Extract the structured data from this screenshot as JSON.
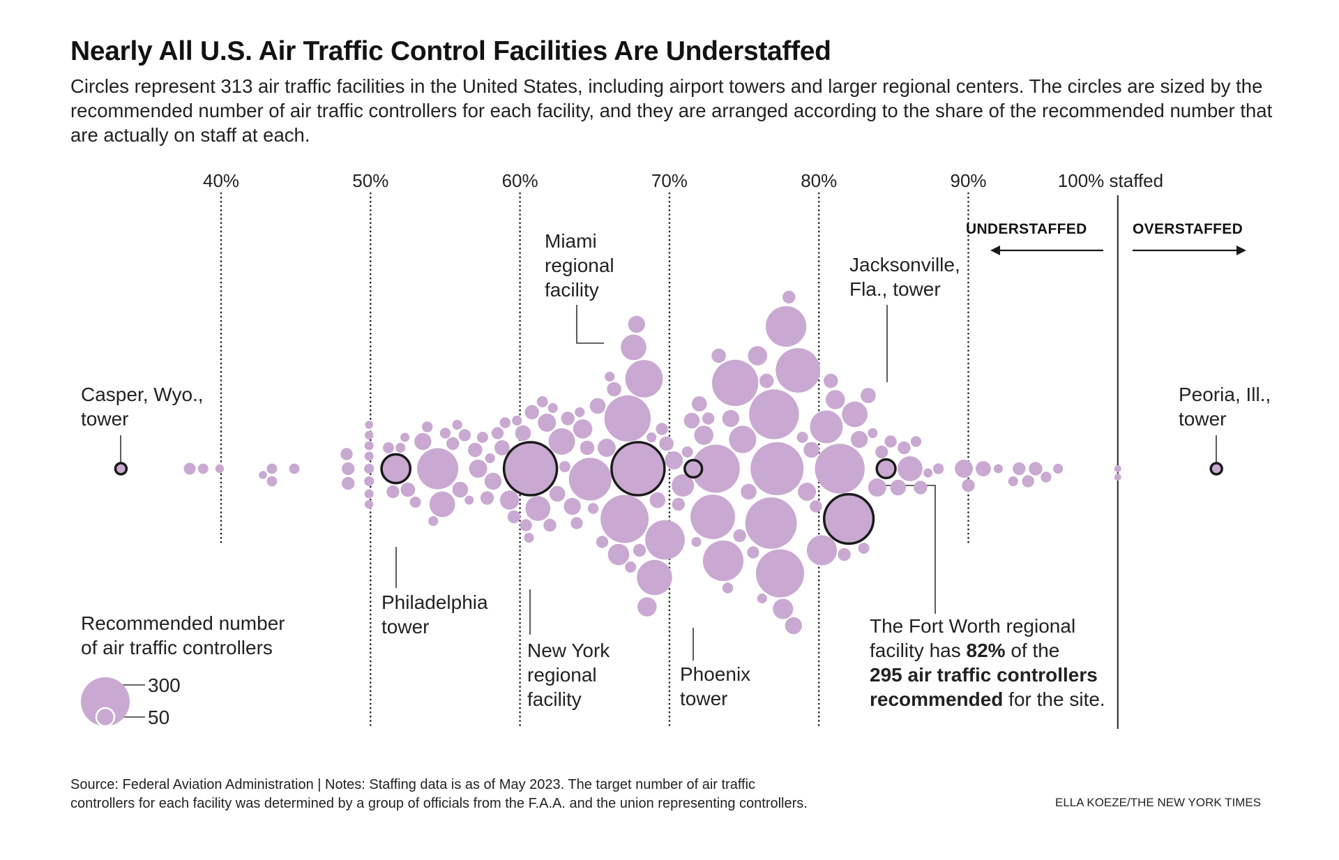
{
  "title": "Nearly All U.S. Air Traffic Control Facilities Are Understaffed",
  "subtitle": "Circles represent 313 air traffic facilities in the United States, including airport towers and larger regional centers. The circles are sized by the recommended number of air traffic controllers for each facility, and they are arranged according to the share of the recommended number that are actually on staff at each.",
  "colors": {
    "circle": "#c9a9d1",
    "highlight_stroke": "#1a1a1a",
    "grid": "#222222"
  },
  "chart_data": {
    "type": "scatter",
    "subtype": "beeswarm",
    "x_axis": {
      "ticks": [
        40,
        50,
        60,
        70,
        80,
        90,
        100
      ],
      "tick_labels": [
        "40%",
        "50%",
        "60%",
        "70%",
        "80%",
        "90%",
        "100% staffed"
      ],
      "range": [
        32,
        108
      ],
      "grid": "dotted"
    },
    "direction_labels": {
      "left": "UNDERSTAFFED",
      "right": "OVERSTAFFED"
    },
    "size_legend": {
      "title": "Recommended number of air traffic controllers",
      "values": [
        300,
        50
      ],
      "labels": [
        "300",
        "50"
      ]
    },
    "highlighted": [
      {
        "name": "Casper, Wyo., tower",
        "pct": 33.3,
        "recommended": 15
      },
      {
        "name": "Peoria, Ill., tower",
        "pct": 106.6,
        "recommended": 15
      },
      {
        "name": "Miami regional facility",
        "pct": 67.9,
        "recommended": 340
      },
      {
        "name": "Jacksonville, Fla., tower",
        "pct": 84.5,
        "recommended": 42
      },
      {
        "name": "Philadelphia tower",
        "pct": 51.7,
        "recommended": 100
      },
      {
        "name": "New York regional facility",
        "pct": 60.7,
        "recommended": 340
      },
      {
        "name": "Phoenix tower",
        "pct": 71.6,
        "recommended": 36
      },
      {
        "name": "Fort Worth regional facility",
        "pct": 82,
        "recommended": 295
      }
    ],
    "facilities": [
      [
        37.9,
        17
      ],
      [
        38.8,
        13
      ],
      [
        39.9,
        9
      ],
      [
        42.8,
        8
      ],
      [
        43.4,
        13
      ],
      [
        43.4,
        13
      ],
      [
        44.9,
        13
      ],
      [
        48.5,
        20
      ],
      [
        48.5,
        20
      ],
      [
        48.4,
        18
      ],
      [
        49.9,
        9
      ],
      [
        49.9,
        10
      ],
      [
        49.9,
        12
      ],
      [
        49.9,
        8
      ],
      [
        49.9,
        10
      ],
      [
        49.9,
        12
      ],
      [
        49.9,
        9
      ],
      [
        49.9,
        10
      ],
      [
        51.2,
        15
      ],
      [
        51.5,
        20
      ],
      [
        52,
        12
      ],
      [
        52.3,
        10
      ],
      [
        52.5,
        25
      ],
      [
        53,
        15
      ],
      [
        53.5,
        35
      ],
      [
        53.8,
        14
      ],
      [
        54.2,
        12
      ],
      [
        54.5,
        205
      ],
      [
        54.8,
        80
      ],
      [
        55,
        14
      ],
      [
        55.5,
        20
      ],
      [
        55.8,
        12
      ],
      [
        56,
        30
      ],
      [
        56.3,
        18
      ],
      [
        56.6,
        10
      ],
      [
        57,
        25
      ],
      [
        57.2,
        40
      ],
      [
        57.5,
        15
      ],
      [
        57.8,
        22
      ],
      [
        58,
        12
      ],
      [
        58.2,
        35
      ],
      [
        58.5,
        18
      ],
      [
        58.8,
        28
      ],
      [
        59,
        14
      ],
      [
        59.3,
        45
      ],
      [
        59.6,
        20
      ],
      [
        59.8,
        12
      ],
      [
        60.2,
        30
      ],
      [
        60.4,
        18
      ],
      [
        60.6,
        12
      ],
      [
        60.8,
        25
      ],
      [
        61.2,
        75
      ],
      [
        61.5,
        15
      ],
      [
        61.8,
        40
      ],
      [
        62,
        20
      ],
      [
        62.2,
        12
      ],
      [
        62.5,
        30
      ],
      [
        62.8,
        85
      ],
      [
        63,
        15
      ],
      [
        63.2,
        22
      ],
      [
        63.5,
        35
      ],
      [
        63.8,
        18
      ],
      [
        64,
        12
      ],
      [
        64.2,
        45
      ],
      [
        64.5,
        25
      ],
      [
        64.7,
        220
      ],
      [
        64.9,
        14
      ],
      [
        65.2,
        30
      ],
      [
        65.5,
        18
      ],
      [
        65.8,
        40
      ],
      [
        66,
        12
      ],
      [
        66.3,
        25
      ],
      [
        66.6,
        55
      ],
      [
        67,
        280
      ],
      [
        67.2,
        260
      ],
      [
        67.4,
        15
      ],
      [
        67.6,
        80
      ],
      [
        67.8,
        35
      ],
      [
        68,
        20
      ],
      [
        68.3,
        170
      ],
      [
        68.5,
        45
      ],
      [
        68.8,
        12
      ],
      [
        69,
        150
      ],
      [
        69.2,
        30
      ],
      [
        69.5,
        18
      ],
      [
        69.8,
        25
      ],
      [
        69.7,
        190
      ],
      [
        70.3,
        40
      ],
      [
        70.6,
        20
      ],
      [
        70.9,
        60
      ],
      [
        71.2,
        15
      ],
      [
        71.5,
        30
      ],
      [
        71.8,
        12
      ],
      [
        72,
        28
      ],
      [
        72.3,
        45
      ],
      [
        72.6,
        18
      ],
      [
        72.9,
        240
      ],
      [
        73.1,
        280
      ],
      [
        73.3,
        25
      ],
      [
        73.6,
        200
      ],
      [
        73.9,
        14
      ],
      [
        74.1,
        35
      ],
      [
        74.4,
        260
      ],
      [
        74.7,
        20
      ],
      [
        74.9,
        90
      ],
      [
        75.3,
        30
      ],
      [
        75.6,
        18
      ],
      [
        75.9,
        45
      ],
      [
        76.2,
        12
      ],
      [
        76.5,
        25
      ],
      [
        76.8,
        320
      ],
      [
        77,
        300
      ],
      [
        77.2,
        340
      ],
      [
        77.4,
        280
      ],
      [
        77.6,
        50
      ],
      [
        77.8,
        200
      ],
      [
        78,
        20
      ],
      [
        78.3,
        35
      ],
      [
        78.6,
        240
      ],
      [
        78.9,
        15
      ],
      [
        79.2,
        40
      ],
      [
        79.5,
        30
      ],
      [
        79.8,
        18
      ],
      [
        80.2,
        110
      ],
      [
        80.5,
        130
      ],
      [
        80.8,
        25
      ],
      [
        81.1,
        45
      ],
      [
        81.4,
        300
      ],
      [
        81.7,
        20
      ],
      [
        82.4,
        80
      ],
      [
        82.7,
        35
      ],
      [
        83,
        15
      ],
      [
        83.3,
        28
      ],
      [
        83.6,
        12
      ],
      [
        83.9,
        40
      ],
      [
        84.2,
        20
      ],
      [
        84.8,
        18
      ],
      [
        85.3,
        30
      ],
      [
        85.7,
        20
      ],
      [
        86.1,
        75
      ],
      [
        86.5,
        14
      ],
      [
        86.8,
        22
      ],
      [
        87.3,
        10
      ],
      [
        88,
        14
      ],
      [
        89.7,
        40
      ],
      [
        90,
        20
      ],
      [
        91,
        28
      ],
      [
        92,
        10
      ],
      [
        93,
        12
      ],
      [
        93.4,
        20
      ],
      [
        94,
        18
      ],
      [
        94.5,
        22
      ],
      [
        95.2,
        14
      ],
      [
        96,
        12
      ],
      [
        100,
        6
      ],
      [
        100,
        6
      ]
    ]
  },
  "annotations": {
    "casper": [
      "Casper, Wyo.,",
      "tower"
    ],
    "peoria": [
      "Peoria, Ill.,",
      "tower"
    ],
    "miami": [
      "Miami",
      "regional",
      "facility"
    ],
    "jacksonville": [
      "Jacksonville,",
      "Fla., tower"
    ],
    "philadelphia": [
      "Philadelphia",
      "tower"
    ],
    "new_york": [
      "New York",
      "regional",
      "facility"
    ],
    "phoenix": [
      "Phoenix",
      "tower"
    ],
    "fort_worth": {
      "l1": "The Fort Worth regional",
      "l2a": "facility has ",
      "l2b": "82%",
      "l2c": " of the",
      "l3": "295 air traffic controllers",
      "l4a": "recommended",
      "l4b": " for the site."
    }
  },
  "legend": {
    "title_l1": "Recommended number",
    "title_l2": "of air traffic controllers",
    "big": "300",
    "small": "50"
  },
  "footer": {
    "l1": "Source: Federal Aviation Administration | Notes: Staffing data is as of May 2023. The target number of air traffic",
    "l2": "controllers for each facility was determined by a group of officials from the F.A.A. and the union representing controllers.",
    "credit": "ELLA KOEZE/THE NEW YORK TIMES"
  }
}
